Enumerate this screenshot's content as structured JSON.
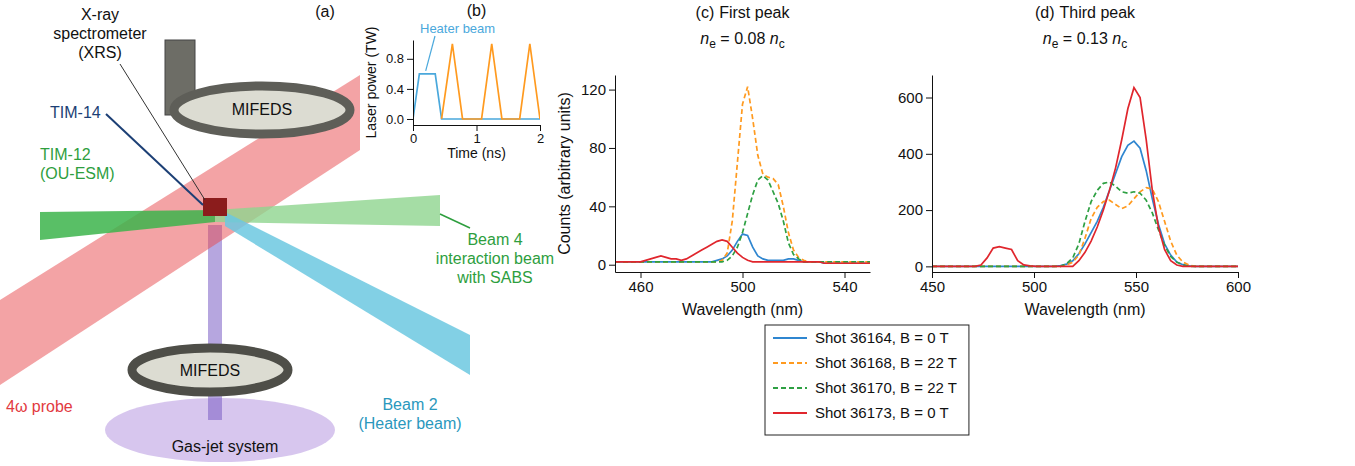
{
  "diagram": {
    "panel_label": "(a)",
    "labels": [
      {
        "lines": [
          "X-ray",
          "spectrometer",
          "(XRS)"
        ]
      },
      {
        "lines": [
          "MIFEDS"
        ]
      },
      {
        "lines": [
          "TIM-14"
        ]
      },
      {
        "lines": [
          "TIM-12",
          "(OU-ESM)"
        ]
      },
      {
        "lines": [
          "Beam 4",
          "interaction beam",
          "with SABS"
        ]
      },
      {
        "lines": [
          "MIFEDS"
        ]
      },
      {
        "lines": [
          "4ω probe"
        ]
      },
      {
        "lines": [
          "Gas-jet system"
        ]
      },
      {
        "lines": [
          "Beam 2",
          "(Heater beam)"
        ]
      }
    ]
  },
  "chart_data": [
    {
      "type": "line",
      "panel_label": "(b)",
      "x_label": "Time (ns)",
      "y_label": "Laser power (TW)",
      "xlim": [
        0,
        2
      ],
      "xticks": [
        0,
        1,
        2
      ],
      "ylim": [
        -0.08,
        1.05
      ],
      "yticks": [
        {
          "value": 0,
          "label": "0.0"
        },
        {
          "value": 0.4,
          "label": "0.4"
        },
        {
          "value": 0.8,
          "label": "0.8"
        }
      ],
      "series": [
        {
          "color": "#4aa8dc",
          "line_style": "solid",
          "x": [
            0,
            0.1,
            0.35,
            0.45,
            2
          ],
          "values": [
            0,
            0.6,
            0.6,
            0,
            0
          ]
        },
        {
          "color": "#ff9a1f",
          "line_style": "solid",
          "x": [
            0.45,
            0.62,
            0.78,
            1.08,
            1.24,
            1.4,
            1.68,
            1.84,
            2
          ],
          "values": [
            0,
            1,
            0,
            0,
            1,
            0,
            0,
            1,
            0
          ]
        }
      ],
      "annotations": [
        {
          "text": "Heater beam",
          "x": 0.2,
          "y": 0.6,
          "color": "#4aa8dc"
        }
      ]
    },
    {
      "type": "line",
      "panel_label": "(c)",
      "title": "First peak",
      "subtitle": [
        {
          "text": "n"
        },
        {
          "text": "e",
          "sub": true
        },
        {
          "text": " = 0.08 "
        },
        {
          "text": "n"
        },
        {
          "text": "c",
          "sub": true
        }
      ],
      "x_label": "Wavelength (nm)",
      "y_label": "Counts (arbitrary units)",
      "xlim": [
        450,
        550
      ],
      "xticks": [
        460,
        500,
        540
      ],
      "ylim": [
        -5,
        130
      ],
      "yticks": [
        0,
        40,
        80,
        120
      ],
      "legend": "bottom",
      "x": [
        450,
        452,
        454,
        456,
        458,
        460,
        462,
        464,
        466,
        468,
        470,
        472,
        474,
        476,
        478,
        480,
        482,
        484,
        486,
        488,
        490,
        492,
        494,
        496,
        498,
        500,
        502,
        504,
        506,
        508,
        510,
        512,
        514,
        516,
        518,
        520,
        522,
        524,
        526,
        528,
        530,
        532,
        534,
        536,
        538,
        540,
        542,
        544,
        546,
        548,
        550
      ],
      "series": [
        {
          "name": "Shot 36164, B = 0 T",
          "color": "#2f86d0",
          "line_style": "solid",
          "values": [
            2,
            2,
            2,
            2,
            2,
            2,
            2,
            2,
            2,
            2,
            2,
            2,
            2,
            2,
            2,
            2,
            2,
            2,
            2,
            2,
            3,
            4,
            6,
            10,
            16,
            21,
            20,
            12,
            6,
            4,
            3,
            3,
            3,
            3,
            4,
            4,
            3,
            2,
            2,
            2,
            2,
            1,
            1,
            1,
            1,
            1,
            1,
            1,
            1,
            1,
            1
          ]
        },
        {
          "name": "Shot 36168, B = 22 T",
          "color": "#ff9a1f",
          "line_style": "dashed",
          "values": [
            2,
            2,
            2,
            2,
            2,
            2,
            2,
            2,
            2,
            2,
            2,
            2,
            2,
            2,
            2,
            2,
            2,
            2,
            2,
            2,
            2,
            3,
            8,
            30,
            70,
            110,
            122,
            100,
            75,
            62,
            60,
            59,
            55,
            40,
            22,
            10,
            5,
            3,
            2,
            2,
            2,
            2,
            2,
            2,
            2,
            2,
            2,
            2,
            2,
            2,
            2
          ]
        },
        {
          "name": "Shot 36170, B = 22 T",
          "color": "#2ea043",
          "line_style": "dashed",
          "values": [
            2,
            2,
            2,
            2,
            2,
            2,
            2,
            2,
            2,
            2,
            2,
            2,
            2,
            2,
            2,
            2,
            2,
            2,
            2,
            2,
            2,
            2,
            3,
            6,
            12,
            22,
            35,
            48,
            58,
            61,
            58,
            50,
            42,
            30,
            15,
            7,
            4,
            2,
            2,
            2,
            2,
            2,
            2,
            2,
            2,
            2,
            2,
            2,
            2,
            2,
            2
          ]
        },
        {
          "name": "Shot 36173, B = 0 T",
          "color": "#e0262d",
          "line_style": "solid",
          "values": [
            2,
            2,
            2,
            2,
            2,
            2,
            3,
            4,
            5,
            6,
            5,
            4,
            4,
            3,
            4,
            6,
            8,
            10,
            12,
            14,
            16,
            17,
            16,
            12,
            8,
            5,
            3,
            2,
            2,
            2,
            2,
            2,
            2,
            2,
            2,
            2,
            2,
            2,
            2,
            2,
            2,
            1,
            1,
            1,
            1,
            1,
            1,
            1,
            1,
            1,
            1
          ]
        }
      ]
    },
    {
      "type": "line",
      "panel_label": "(d)",
      "title": "Third peak",
      "subtitle": [
        {
          "text": "n"
        },
        {
          "text": "e",
          "sub": true
        },
        {
          "text": " = 0.13 "
        },
        {
          "text": "n"
        },
        {
          "text": "c",
          "sub": true
        }
      ],
      "x_label": "Wavelength (nm)",
      "xlim": [
        450,
        600
      ],
      "xticks": [
        450,
        500,
        550,
        600
      ],
      "ylim": [
        -20,
        680
      ],
      "yticks": [
        0,
        200,
        400,
        600
      ],
      "x": [
        450,
        453,
        456,
        459,
        462,
        465,
        468,
        471,
        474,
        477,
        480,
        483,
        486,
        489,
        492,
        495,
        498,
        501,
        504,
        507,
        510,
        513,
        516,
        519,
        522,
        525,
        528,
        531,
        534,
        537,
        540,
        543,
        546,
        549,
        552,
        555,
        558,
        561,
        564,
        567,
        570,
        573,
        576,
        579,
        582,
        585,
        588,
        591,
        594,
        597,
        600
      ],
      "series": [
        {
          "name": "Shot 36164, B = 0 T",
          "color": "#2f86d0",
          "line_style": "solid",
          "values": [
            0,
            0,
            0,
            0,
            0,
            0,
            0,
            0,
            0,
            0,
            0,
            0,
            0,
            0,
            0,
            0,
            0,
            0,
            0,
            0,
            0,
            3,
            8,
            20,
            45,
            80,
            120,
            160,
            210,
            270,
            330,
            390,
            430,
            445,
            420,
            340,
            240,
            150,
            80,
            40,
            15,
            6,
            2,
            0,
            0,
            0,
            0,
            0,
            0,
            0,
            0
          ]
        },
        {
          "name": "Shot 36168, B = 22 T",
          "color": "#ff9a1f",
          "line_style": "dashed",
          "values": [
            0,
            0,
            0,
            0,
            0,
            0,
            0,
            0,
            0,
            0,
            0,
            0,
            0,
            0,
            0,
            0,
            0,
            0,
            0,
            0,
            0,
            0,
            5,
            15,
            40,
            100,
            170,
            210,
            230,
            235,
            220,
            205,
            215,
            240,
            265,
            280,
            275,
            230,
            160,
            90,
            40,
            15,
            5,
            0,
            0,
            0,
            0,
            0,
            0,
            0,
            0
          ]
        },
        {
          "name": "Shot 36170, B = 22 T",
          "color": "#2ea043",
          "line_style": "dashed",
          "values": [
            0,
            0,
            0,
            0,
            0,
            0,
            0,
            0,
            0,
            0,
            0,
            0,
            0,
            0,
            0,
            0,
            0,
            0,
            0,
            0,
            0,
            0,
            10,
            30,
            80,
            160,
            230,
            270,
            295,
            300,
            285,
            265,
            260,
            265,
            260,
            235,
            190,
            130,
            75,
            35,
            15,
            5,
            0,
            0,
            0,
            0,
            0,
            0,
            0,
            0,
            0
          ]
        },
        {
          "name": "Shot 36173, B = 0 T",
          "color": "#e0262d",
          "line_style": "solid",
          "values": [
            0,
            0,
            0,
            0,
            0,
            0,
            0,
            0,
            5,
            30,
            65,
            70,
            65,
            60,
            20,
            5,
            2,
            0,
            0,
            0,
            0,
            0,
            0,
            0,
            20,
            50,
            90,
            140,
            200,
            270,
            350,
            450,
            560,
            635,
            600,
            450,
            270,
            140,
            60,
            20,
            5,
            0,
            0,
            0,
            0,
            0,
            0,
            0,
            0,
            0,
            0
          ]
        }
      ]
    }
  ]
}
